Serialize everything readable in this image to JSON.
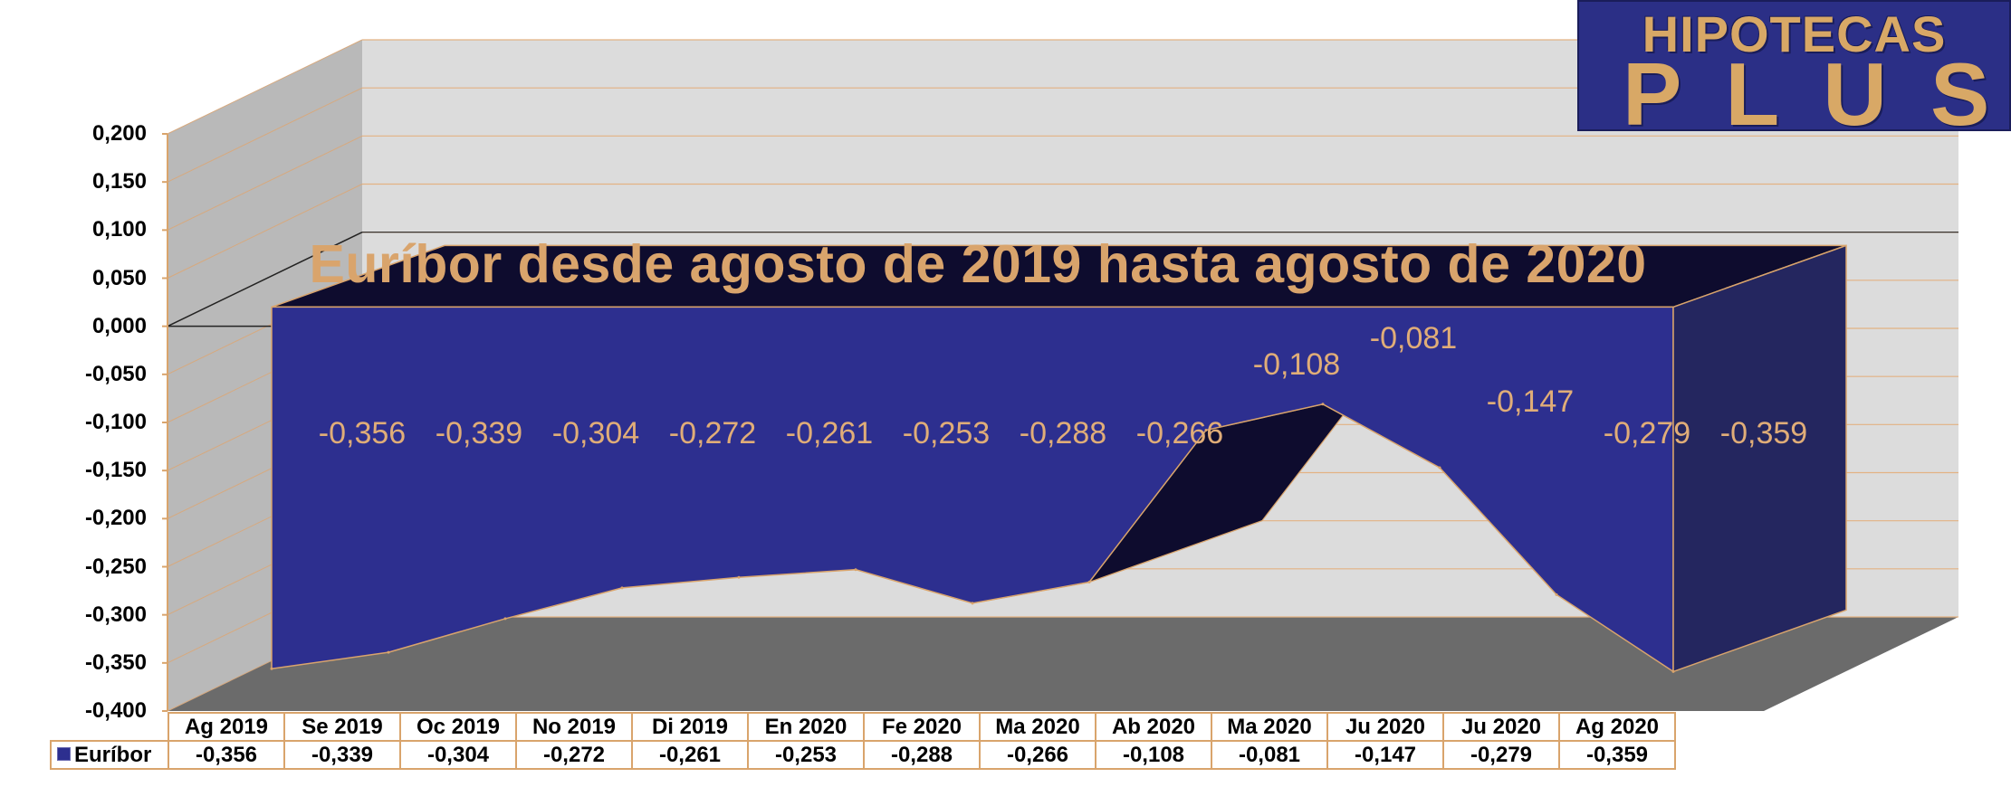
{
  "logo": {
    "line1": "HIPOTECAS",
    "line2": "PLUS"
  },
  "chart_data": {
    "type": "area",
    "title": "Euríbor desde agosto de 2019 hasta agosto de 2020",
    "xlabel": "",
    "ylabel": "",
    "categories": [
      "Ag 2019",
      "Se 2019",
      "Oc 2019",
      "No 2019",
      "Di 2019",
      "En 2020",
      "Fe 2020",
      "Ma 2020",
      "Ab 2020",
      "Ma 2020",
      "Ju 2020",
      "Ju 2020",
      "Ag 2020"
    ],
    "series": [
      {
        "name": "Euríbor",
        "values": [
          -0.356,
          -0.339,
          -0.304,
          -0.272,
          -0.261,
          -0.253,
          -0.288,
          -0.266,
          -0.108,
          -0.081,
          -0.147,
          -0.279,
          -0.359
        ],
        "labels": [
          "-0,356",
          "-0,339",
          "-0,304",
          "-0,272",
          "-0,261",
          "-0,253",
          "-0,288",
          "-0,266",
          "-0,108",
          "-0,081",
          "-0,147",
          "-0,279",
          "-0,359"
        ]
      }
    ],
    "ylim": [
      -0.4,
      0.2
    ],
    "yticks": [
      "0,200",
      "0,150",
      "0,100",
      "0,050",
      "0,000",
      "-0,050",
      "-0,100",
      "-0,150",
      "-0,200",
      "-0,250",
      "-0,300",
      "-0,350",
      "-0,400"
    ],
    "grid": true,
    "legend": "data-table",
    "three_d": true,
    "colors": {
      "series": "#2d2f8f",
      "series_top": "#0e0c2e",
      "labels": "#e0ad78",
      "outline": "#d9a46c",
      "back_wall": "#dcdcdc",
      "side_wall": "#b9b9b9",
      "floor": "#6b6b6b"
    }
  }
}
